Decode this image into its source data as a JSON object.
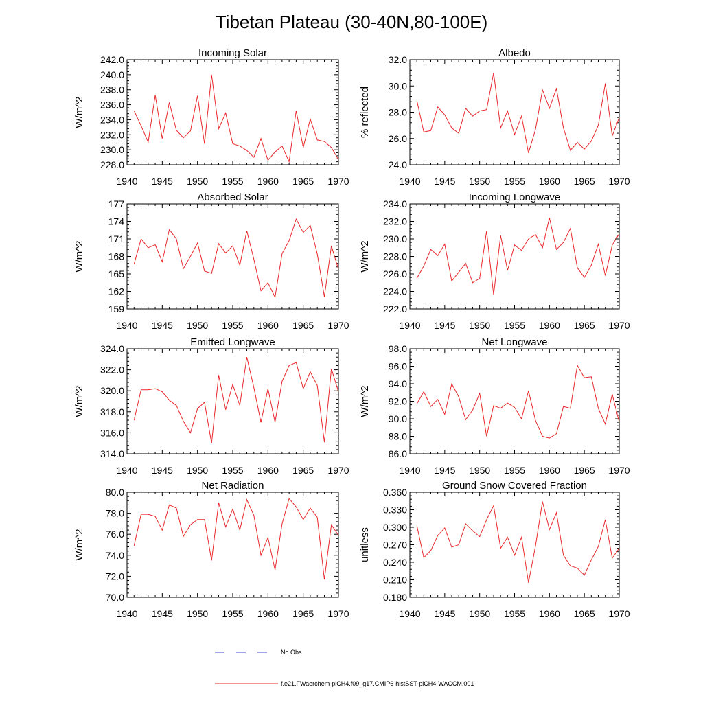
{
  "title": "Tibetan Plateau (30-40N,80-100E)",
  "legend": {
    "items": [
      {
        "label": "No Obs",
        "color": "#4444cc",
        "style": "dashed"
      },
      {
        "label": "f.e21.FWaerchem-piCH4.f09_g17.CMIP6-histSST-piCH4-WACCM.001",
        "color": "#e8262a",
        "style": "solid"
      }
    ]
  },
  "chart_data": [
    {
      "type": "line",
      "title": "Incoming Solar",
      "ylabel": "W/m^2",
      "xlim": [
        1940,
        1970
      ],
      "ylim": [
        228,
        242
      ],
      "xticks": [
        "1940",
        "1945",
        "1950",
        "1955",
        "1960",
        "1965",
        "1970"
      ],
      "yticks": [
        "228.0",
        "230.0",
        "232.0",
        "234.0",
        "236.0",
        "238.0",
        "240.0",
        "242.0"
      ],
      "x": [
        1941,
        1942,
        1943,
        1944,
        1945,
        1946,
        1947,
        1948,
        1949,
        1950,
        1951,
        1952,
        1953,
        1954,
        1955,
        1956,
        1957,
        1958,
        1959,
        1960,
        1961,
        1962,
        1963,
        1964,
        1965,
        1966,
        1967,
        1968,
        1969,
        1970
      ],
      "values": [
        235.2,
        233.2,
        231.0,
        237.3,
        231.5,
        236.3,
        232.6,
        231.6,
        232.5,
        237.2,
        230.8,
        240.0,
        232.8,
        234.9,
        230.8,
        230.5,
        229.9,
        229.0,
        231.5,
        228.6,
        229.7,
        230.5,
        228.4,
        235.2,
        230.3,
        234.1,
        231.3,
        231.1,
        230.3,
        228.7
      ]
    },
    {
      "type": "line",
      "title": "Albedo",
      "ylabel": "% reflected",
      "xlim": [
        1940,
        1970
      ],
      "ylim": [
        24,
        32
      ],
      "xticks": [
        "1940",
        "1945",
        "1950",
        "1955",
        "1960",
        "1965",
        "1970"
      ],
      "yticks": [
        "24.0",
        "26.0",
        "28.0",
        "30.0",
        "32.0"
      ],
      "x": [
        1941,
        1942,
        1943,
        1944,
        1945,
        1946,
        1947,
        1948,
        1949,
        1950,
        1951,
        1952,
        1953,
        1954,
        1955,
        1956,
        1957,
        1958,
        1959,
        1960,
        1961,
        1962,
        1963,
        1964,
        1965,
        1966,
        1967,
        1968,
        1969,
        1970
      ],
      "values": [
        28.9,
        26.5,
        26.6,
        28.4,
        27.8,
        26.8,
        26.4,
        28.3,
        27.7,
        28.1,
        28.2,
        31.0,
        26.8,
        28.1,
        26.3,
        27.7,
        24.9,
        26.7,
        29.7,
        28.3,
        29.8,
        26.8,
        25.1,
        25.7,
        25.2,
        25.8,
        27.0,
        30.2,
        26.2,
        27.6
      ]
    },
    {
      "type": "line",
      "title": "Absorbed Solar",
      "ylabel": "W/m^2",
      "xlim": [
        1940,
        1970
      ],
      "ylim": [
        159,
        177
      ],
      "xticks": [
        "1940",
        "1945",
        "1950",
        "1955",
        "1960",
        "1965",
        "1970"
      ],
      "yticks": [
        "159",
        "162",
        "165",
        "168",
        "171",
        "174",
        "177"
      ],
      "x": [
        1941,
        1942,
        1943,
        1944,
        1945,
        1946,
        1947,
        1948,
        1949,
        1950,
        1951,
        1952,
        1953,
        1954,
        1955,
        1956,
        1957,
        1958,
        1959,
        1960,
        1961,
        1962,
        1963,
        1964,
        1965,
        1966,
        1967,
        1968,
        1969,
        1970
      ],
      "values": [
        166.7,
        171.0,
        169.5,
        170.0,
        167.1,
        172.6,
        171.0,
        165.9,
        168.0,
        170.3,
        165.5,
        165.1,
        170.2,
        168.6,
        169.8,
        166.5,
        172.4,
        167.5,
        162.1,
        163.5,
        161.0,
        168.5,
        170.7,
        174.4,
        172.1,
        173.3,
        168.4,
        161.1,
        169.8,
        165.8
      ]
    },
    {
      "type": "line",
      "title": "Incoming Longwave",
      "ylabel": "W/m^2",
      "xlim": [
        1940,
        1970
      ],
      "ylim": [
        222,
        234
      ],
      "xticks": [
        "1940",
        "1945",
        "1950",
        "1955",
        "1960",
        "1965",
        "1970"
      ],
      "yticks": [
        "222.0",
        "224.0",
        "226.0",
        "228.0",
        "230.0",
        "232.0",
        "234.0"
      ],
      "x": [
        1941,
        1942,
        1943,
        1944,
        1945,
        1946,
        1947,
        1948,
        1949,
        1950,
        1951,
        1952,
        1953,
        1954,
        1955,
        1956,
        1957,
        1958,
        1959,
        1960,
        1961,
        1962,
        1963,
        1964,
        1965,
        1966,
        1967,
        1968,
        1969,
        1970
      ],
      "values": [
        225.5,
        226.9,
        228.8,
        228.1,
        229.4,
        225.2,
        226.2,
        227.2,
        225.0,
        225.5,
        230.9,
        223.6,
        230.4,
        226.4,
        229.3,
        228.7,
        230.0,
        230.5,
        229.0,
        232.4,
        228.8,
        229.6,
        231.2,
        226.7,
        225.6,
        227.0,
        229.4,
        225.8,
        229.3,
        230.6
      ]
    },
    {
      "type": "line",
      "title": "Emitted Longwave",
      "ylabel": "W/m^2",
      "xlim": [
        1940,
        1970
      ],
      "ylim": [
        314,
        324
      ],
      "xticks": [
        "1940",
        "1945",
        "1950",
        "1955",
        "1960",
        "1965",
        "1970"
      ],
      "yticks": [
        "314.0",
        "316.0",
        "318.0",
        "320.0",
        "322.0",
        "324.0"
      ],
      "x": [
        1941,
        1942,
        1943,
        1944,
        1945,
        1946,
        1947,
        1948,
        1949,
        1950,
        1951,
        1952,
        1953,
        1954,
        1955,
        1956,
        1957,
        1958,
        1959,
        1960,
        1961,
        1962,
        1963,
        1964,
        1965,
        1966,
        1967,
        1968,
        1969,
        1970
      ],
      "values": [
        317.2,
        320.1,
        320.1,
        320.2,
        319.9,
        319.1,
        318.6,
        317.1,
        316.0,
        318.3,
        318.9,
        315.0,
        321.5,
        318.2,
        320.6,
        318.6,
        323.2,
        320.3,
        317.0,
        320.2,
        317.0,
        320.9,
        322.4,
        322.7,
        320.2,
        321.8,
        320.5,
        315.1,
        322.1,
        319.9
      ]
    },
    {
      "type": "line",
      "title": "Net Longwave",
      "ylabel": "W/m^2",
      "xlim": [
        1940,
        1970
      ],
      "ylim": [
        86,
        98
      ],
      "xticks": [
        "1940",
        "1945",
        "1950",
        "1955",
        "1960",
        "1965",
        "1970"
      ],
      "yticks": [
        "86.0",
        "88.0",
        "90.0",
        "92.0",
        "94.0",
        "96.0",
        "98.0"
      ],
      "x": [
        1941,
        1942,
        1943,
        1944,
        1945,
        1946,
        1947,
        1948,
        1949,
        1950,
        1951,
        1952,
        1953,
        1954,
        1955,
        1956,
        1957,
        1958,
        1959,
        1960,
        1961,
        1962,
        1963,
        1964,
        1965,
        1966,
        1967,
        1968,
        1969,
        1970
      ],
      "values": [
        91.7,
        93.1,
        91.4,
        92.2,
        90.5,
        94.0,
        92.5,
        89.9,
        91.0,
        92.9,
        88.0,
        91.5,
        91.2,
        91.8,
        91.3,
        90.0,
        93.2,
        89.8,
        88.0,
        87.8,
        88.3,
        91.4,
        91.2,
        96.1,
        94.7,
        94.8,
        91.2,
        89.4,
        92.8,
        89.6
      ]
    },
    {
      "type": "line",
      "title": "Net Radiation",
      "ylabel": "W/m^2",
      "xlim": [
        1940,
        1970
      ],
      "ylim": [
        70,
        80
      ],
      "xticks": [
        "1940",
        "1945",
        "1950",
        "1955",
        "1960",
        "1965",
        "1970"
      ],
      "yticks": [
        "70.0",
        "72.0",
        "74.0",
        "76.0",
        "78.0",
        "80.0"
      ],
      "x": [
        1941,
        1942,
        1943,
        1944,
        1945,
        1946,
        1947,
        1948,
        1949,
        1950,
        1951,
        1952,
        1953,
        1954,
        1955,
        1956,
        1957,
        1958,
        1959,
        1960,
        1961,
        1962,
        1963,
        1964,
        1965,
        1966,
        1967,
        1968,
        1969,
        1970
      ],
      "values": [
        74.9,
        77.9,
        77.9,
        77.7,
        76.4,
        78.8,
        78.5,
        75.8,
        76.9,
        77.4,
        77.4,
        73.5,
        79.0,
        76.7,
        78.4,
        76.4,
        79.3,
        77.8,
        74.0,
        75.7,
        72.6,
        77.0,
        79.4,
        78.6,
        77.4,
        78.5,
        77.6,
        71.7,
        76.9,
        75.9
      ]
    },
    {
      "type": "line",
      "title": "Ground Snow Covered Fraction",
      "ylabel": "unitless",
      "xlim": [
        1940,
        1970
      ],
      "ylim": [
        0.18,
        0.36
      ],
      "xticks": [
        "1940",
        "1945",
        "1950",
        "1955",
        "1960",
        "1965",
        "1970"
      ],
      "yticks": [
        "0.180",
        "0.210",
        "0.240",
        "0.270",
        "0.300",
        "0.330",
        "0.360"
      ],
      "x": [
        1941,
        1942,
        1943,
        1944,
        1945,
        1946,
        1947,
        1948,
        1949,
        1950,
        1951,
        1952,
        1953,
        1954,
        1955,
        1956,
        1957,
        1958,
        1959,
        1960,
        1961,
        1962,
        1963,
        1964,
        1965,
        1966,
        1967,
        1968,
        1969,
        1970
      ],
      "values": [
        0.303,
        0.248,
        0.26,
        0.286,
        0.299,
        0.266,
        0.27,
        0.306,
        0.294,
        0.284,
        0.313,
        0.337,
        0.264,
        0.283,
        0.252,
        0.283,
        0.205,
        0.268,
        0.344,
        0.296,
        0.325,
        0.252,
        0.234,
        0.23,
        0.218,
        0.244,
        0.267,
        0.313,
        0.247,
        0.264
      ]
    }
  ]
}
